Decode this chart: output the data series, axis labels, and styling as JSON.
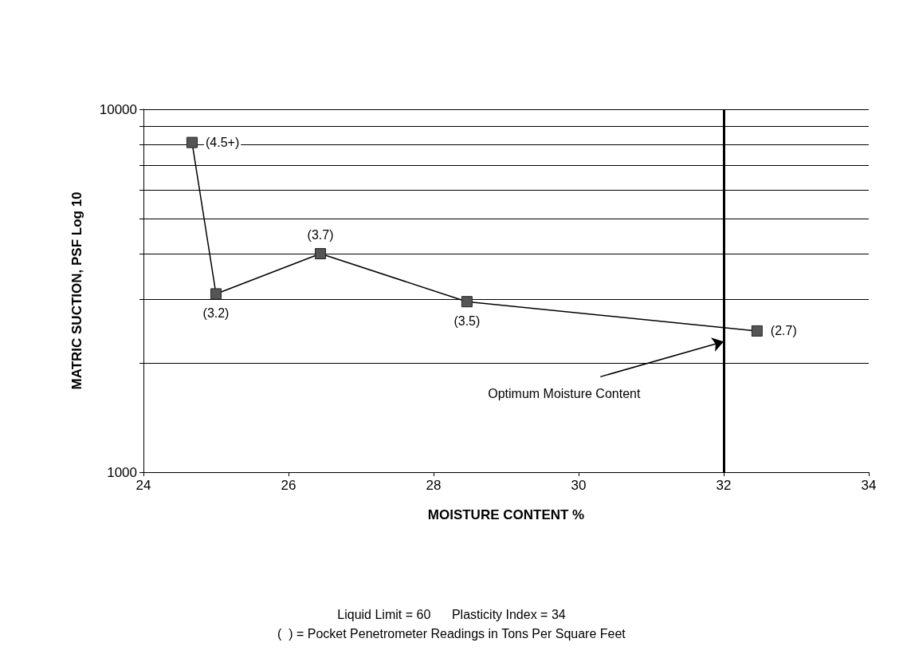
{
  "chart_data": {
    "type": "line",
    "xlabel": "MOISTURE CONTENT %",
    "ylabel": "MATRIC SUCTION, PSF Log 10",
    "x": [
      24.67,
      25.0,
      26.44,
      28.46,
      32.46
    ],
    "series": [
      {
        "color": "#555555",
        "values": [
          8100,
          3100,
          4000,
          2950,
          2450
        ]
      }
    ],
    "xlim": [
      24,
      34
    ],
    "xticks": [
      24,
      26,
      28,
      30,
      32,
      34
    ],
    "ylim": [
      1000,
      10000
    ],
    "yticks": [
      1000,
      {
        "value": 2000,
        "label": null
      },
      {
        "value": 3000,
        "label": null
      },
      {
        "value": 4000,
        "label": null
      },
      {
        "value": 5000,
        "label": null
      },
      {
        "value": 6000,
        "label": null
      },
      {
        "value": 7000,
        "label": null
      },
      {
        "value": 8000,
        "label": null
      },
      {
        "value": 9000,
        "label": null
      },
      10000
    ],
    "log": "y",
    "grid": "y",
    "marker": "square",
    "line_style": "solid",
    "ref_lines": [
      {
        "axis": "x",
        "value": 32,
        "color": "#000000"
      }
    ],
    "annotations": [
      {
        "text": "(4.5+)",
        "x": 24.67,
        "y": 8100
      },
      {
        "text": "(3.2)",
        "x": 25.0,
        "y": 3100
      },
      {
        "text": "(3.7)",
        "x": 26.44,
        "y": 4000
      },
      {
        "text": "(3.5)",
        "x": 28.46,
        "y": 2950
      },
      {
        "text": "(2.7)",
        "x": 32.46,
        "y": 2450
      },
      {
        "text": "Optimum Moisture Content",
        "x": 32,
        "y": 2290
      },
      "Liquid Limit = 60      Plasticity Index = 34",
      "(  ) = Pocket Penetrometer Readings in Tons Per Square Feet"
    ]
  }
}
